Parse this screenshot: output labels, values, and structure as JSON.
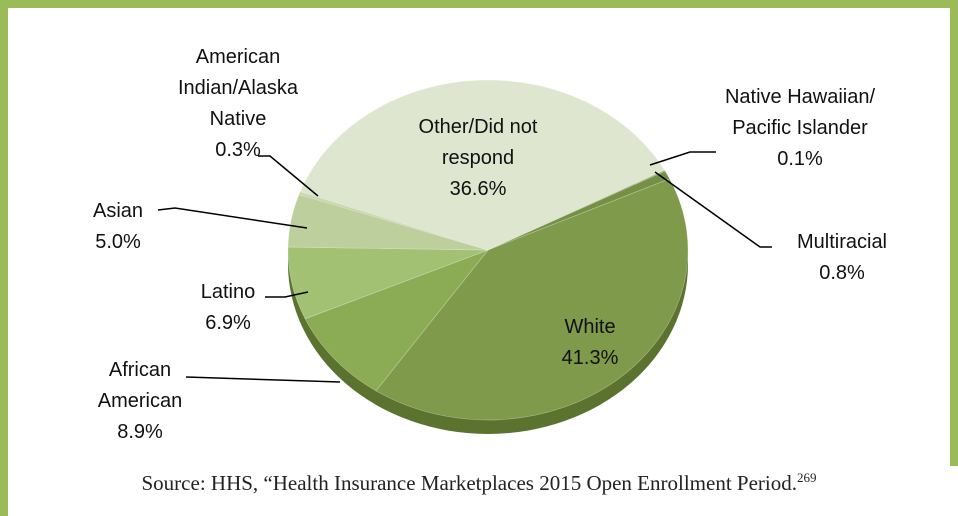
{
  "chart_data": {
    "type": "pie",
    "categories": [
      "Native Hawaiian/ Pacific Islander",
      "Multiracial",
      "White",
      "African American",
      "Latino",
      "Asian",
      "American Indian/Alaska Native",
      "Other/Did not respond"
    ],
    "values": [
      0.1,
      0.8,
      41.3,
      8.9,
      6.9,
      5.0,
      0.3,
      36.6
    ],
    "value_labels": [
      "0.1%",
      "0.8%",
      "41.3%",
      "8.9%",
      "6.9%",
      "5.0%",
      "0.3%",
      "36.6%"
    ],
    "colors": [
      "#6b8a3a",
      "#758f44",
      "#7f9a4a",
      "#8cab55",
      "#a3c172",
      "#bccf9c",
      "#c9d7af",
      "#dee6cf"
    ],
    "source": "Source: HHS, “Health Insurance Marketplaces 2015 Open Enrollment Period.",
    "source_ref": "269"
  }
}
